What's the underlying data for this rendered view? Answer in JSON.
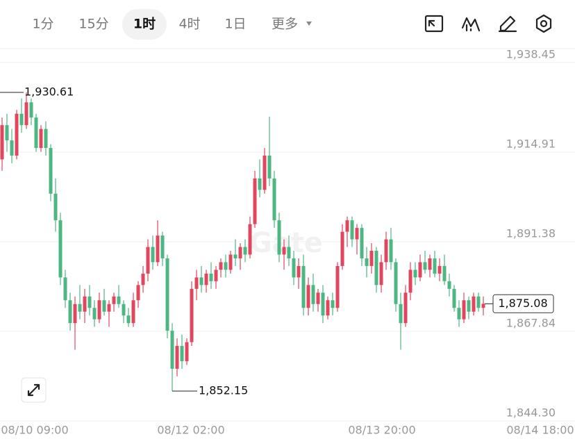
{
  "toolbar": {
    "tabs": [
      "1分",
      "15分",
      "1时",
      "4时",
      "1日",
      "更多"
    ],
    "active": 2
  },
  "chart_data": {
    "type": "candlestick",
    "watermark": "Gate",
    "up_color": "#e0475f",
    "down_color": "#4cb782",
    "ylim": [
      1844.3,
      1938.45
    ],
    "yticks": [
      {
        "value": 1938.45,
        "label": "1,938.45"
      },
      {
        "value": 1914.91,
        "label": "1,914.91"
      },
      {
        "value": 1891.38,
        "label": "1,891.38"
      },
      {
        "value": 1867.84,
        "label": "1,867.84"
      },
      {
        "value": 1844.3,
        "label": "1,844.30"
      }
    ],
    "grid": true,
    "x_labels": [
      "08/10 09:00",
      "08/12 02:00",
      "08/13 20:00",
      "08/14 18:00"
    ],
    "high_marker": {
      "index": 5,
      "value": 1930.61,
      "label": "1,930.61"
    },
    "low_marker": {
      "index": 35,
      "value": 1852.15,
      "label": "1,852.15"
    },
    "last_price": {
      "value": 1875.08,
      "label": "1,875.08"
    },
    "ohlc": [
      [
        1913,
        1924,
        1910,
        1922
      ],
      [
        1922,
        1925,
        1915,
        1918
      ],
      [
        1918,
        1921,
        1912,
        1914
      ],
      [
        1914,
        1926,
        1913,
        1925
      ],
      [
        1925,
        1929,
        1920,
        1922
      ],
      [
        1922,
        1930.61,
        1921,
        1928
      ],
      [
        1928,
        1929,
        1922,
        1924
      ],
      [
        1924,
        1925,
        1915,
        1916
      ],
      [
        1916,
        1922,
        1915,
        1921
      ],
      [
        1921,
        1923,
        1914,
        1916
      ],
      [
        1916,
        1917,
        1902,
        1904
      ],
      [
        1904,
        1908,
        1894,
        1897
      ],
      [
        1897,
        1899,
        1880,
        1882
      ],
      [
        1882,
        1884,
        1874,
        1876
      ],
      [
        1876,
        1878,
        1868,
        1870
      ],
      [
        1870,
        1877,
        1863,
        1875
      ],
      [
        1875,
        1880,
        1871,
        1873
      ],
      [
        1873,
        1879,
        1870,
        1877
      ],
      [
        1877,
        1880,
        1872,
        1874
      ],
      [
        1874,
        1876,
        1869,
        1871
      ],
      [
        1871,
        1878,
        1870,
        1876
      ],
      [
        1876,
        1879,
        1872,
        1873
      ],
      [
        1873,
        1876,
        1869,
        1875
      ],
      [
        1875,
        1878,
        1873,
        1877
      ],
      [
        1877,
        1880,
        1874,
        1875
      ],
      [
        1875,
        1876,
        1870,
        1872
      ],
      [
        1872,
        1874,
        1869,
        1870
      ],
      [
        1870,
        1878,
        1869,
        1876
      ],
      [
        1876,
        1881,
        1874,
        1880
      ],
      [
        1880,
        1885,
        1878,
        1883
      ],
      [
        1883,
        1892,
        1881,
        1890
      ],
      [
        1890,
        1893,
        1884,
        1886
      ],
      [
        1886,
        1897,
        1885,
        1893
      ],
      [
        1893,
        1894,
        1885,
        1887
      ],
      [
        1887,
        1888,
        1866,
        1868
      ],
      [
        1868,
        1870,
        1852.15,
        1858
      ],
      [
        1858,
        1866,
        1856,
        1864
      ],
      [
        1864,
        1867,
        1858,
        1860
      ],
      [
        1860,
        1866,
        1859,
        1865
      ],
      [
        1865,
        1881,
        1864,
        1879
      ],
      [
        1879,
        1884,
        1876,
        1882
      ],
      [
        1882,
        1885,
        1878,
        1880
      ],
      [
        1880,
        1884,
        1878,
        1883
      ],
      [
        1883,
        1886,
        1879,
        1881
      ],
      [
        1881,
        1885,
        1879,
        1884
      ],
      [
        1884,
        1887,
        1882,
        1886
      ],
      [
        1886,
        1888,
        1882,
        1884
      ],
      [
        1884,
        1889,
        1883,
        1888
      ],
      [
        1888,
        1892,
        1885,
        1887
      ],
      [
        1887,
        1891,
        1884,
        1890
      ],
      [
        1890,
        1892,
        1886,
        1888
      ],
      [
        1888,
        1898,
        1887,
        1896
      ],
      [
        1896,
        1910,
        1895,
        1908
      ],
      [
        1908,
        1913,
        1903,
        1905
      ],
      [
        1905,
        1916,
        1904,
        1914
      ],
      [
        1914,
        1924.2,
        1906,
        1908
      ],
      [
        1908,
        1910,
        1895,
        1897
      ],
      [
        1897,
        1899,
        1886,
        1888
      ],
      [
        1888,
        1892,
        1884,
        1890
      ],
      [
        1890,
        1893,
        1885,
        1887
      ],
      [
        1887,
        1889,
        1880,
        1882
      ],
      [
        1882,
        1887,
        1879,
        1885
      ],
      [
        1885,
        1888,
        1872,
        1874
      ],
      [
        1874,
        1882,
        1872,
        1880
      ],
      [
        1880,
        1883,
        1873,
        1875
      ],
      [
        1875,
        1879,
        1873,
        1878
      ],
      [
        1878,
        1880,
        1870,
        1872
      ],
      [
        1872,
        1877,
        1871,
        1876
      ],
      [
        1876,
        1878,
        1872,
        1874
      ],
      [
        1874,
        1886,
        1873,
        1885
      ],
      [
        1885,
        1896,
        1884,
        1894
      ],
      [
        1894,
        1898,
        1890,
        1897
      ],
      [
        1897,
        1898,
        1890,
        1892
      ],
      [
        1892,
        1896,
        1888,
        1895
      ],
      [
        1895,
        1896,
        1885,
        1887
      ],
      [
        1887,
        1890,
        1882,
        1885
      ],
      [
        1885,
        1891,
        1883,
        1889
      ],
      [
        1889,
        1890,
        1878,
        1880
      ],
      [
        1880,
        1888,
        1878,
        1886
      ],
      [
        1886,
        1894,
        1884,
        1892
      ],
      [
        1892,
        1895,
        1884,
        1886
      ],
      [
        1886,
        1887,
        1873,
        1875
      ],
      [
        1875,
        1878,
        1863,
        1870
      ],
      [
        1870,
        1880,
        1869,
        1878
      ],
      [
        1878,
        1886,
        1876,
        1884
      ],
      [
        1884,
        1886,
        1880,
        1882
      ],
      [
        1882,
        1888,
        1881,
        1886
      ],
      [
        1886,
        1889,
        1883,
        1884
      ],
      [
        1884,
        1888,
        1882,
        1887
      ],
      [
        1887,
        1889,
        1882,
        1883
      ],
      [
        1883,
        1887,
        1881,
        1885
      ],
      [
        1885,
        1888,
        1880,
        1881
      ],
      [
        1881,
        1883,
        1877,
        1879
      ],
      [
        1879,
        1880,
        1873,
        1874
      ],
      [
        1874,
        1876,
        1869,
        1871
      ],
      [
        1871,
        1878,
        1870,
        1876
      ],
      [
        1876,
        1877,
        1871,
        1873
      ],
      [
        1873,
        1878,
        1872,
        1877
      ],
      [
        1877,
        1878,
        1873,
        1874
      ],
      [
        1874,
        1877,
        1872,
        1875.08
      ]
    ]
  }
}
